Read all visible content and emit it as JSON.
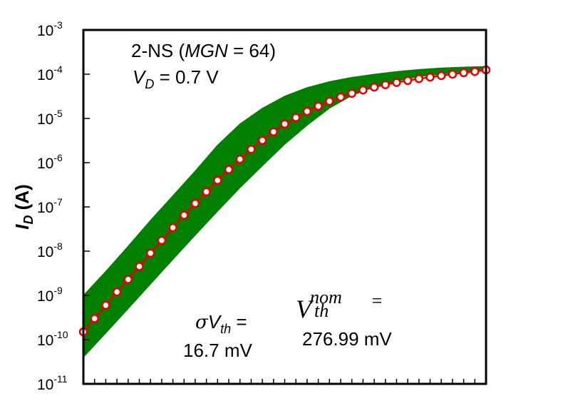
{
  "chart_data": {
    "type": "line",
    "title": "",
    "xlabel": "",
    "ylabel": "I_D (A)",
    "ylabel_parts": {
      "main": "I",
      "sub": "D",
      "unit": "(A)"
    },
    "yscale": "log",
    "ylim": [
      1e-11,
      0.001
    ],
    "xlim": [
      0,
      36
    ],
    "x_tick_count": 36,
    "y_ticks": [
      {
        "base": "10",
        "exp": "-3"
      },
      {
        "base": "10",
        "exp": "-4"
      },
      {
        "base": "10",
        "exp": "-5"
      },
      {
        "base": "10",
        "exp": "-6"
      },
      {
        "base": "10",
        "exp": "-7"
      },
      {
        "base": "10",
        "exp": "-8"
      },
      {
        "base": "10",
        "exp": "-9"
      },
      {
        "base": "10",
        "exp": "-10"
      },
      {
        "base": "10",
        "exp": "-11"
      }
    ],
    "grid": false,
    "band": {
      "description": "Monte Carlo spread (green)",
      "color": "#008000",
      "x": [
        0,
        2,
        4,
        6,
        8,
        10,
        12,
        14,
        16,
        18,
        20,
        22,
        24,
        26,
        28,
        30,
        32,
        34,
        36
      ],
      "upper": [
        1e-09,
        3.5e-09,
        1.3e-08,
        5e-08,
        1.8e-07,
        6.5e-07,
        2.5e-06,
        7.5e-06,
        1.7e-05,
        3.2e-05,
        5e-05,
        6.8e-05,
        8.5e-05,
        0.0001,
        0.000115,
        0.000128,
        0.000138,
        0.000145,
        0.00015
      ],
      "lower": [
        4e-11,
        1.4e-10,
        5e-10,
        1.8e-09,
        6.5e-09,
        2.3e-08,
        8e-08,
        2.7e-07,
        8.5e-07,
        2.6e-06,
        7e-06,
        1.7e-05,
        3.3e-05,
        5.2e-05,
        7e-05,
        8.8e-05,
        0.0001,
        0.000115,
        0.000125
      ]
    },
    "series": [
      {
        "color": "#e60000",
        "marker": "open-circle",
        "x": [
          0,
          1,
          2,
          3,
          4,
          5,
          6,
          7,
          8,
          9,
          10,
          11,
          12,
          13,
          14,
          15,
          16,
          17,
          18,
          19,
          20,
          21,
          22,
          23,
          24,
          25,
          26,
          27,
          28,
          29,
          30,
          31,
          32,
          33,
          34,
          35,
          36
        ],
        "values": [
          1.5e-10,
          3e-10,
          6e-10,
          1.2e-09,
          2.3e-09,
          4.5e-09,
          9e-09,
          1.75e-08,
          3.4e-08,
          6.5e-08,
          1.2e-07,
          2.2e-07,
          4e-07,
          7e-07,
          1.2e-06,
          2e-06,
          3.2e-06,
          5e-06,
          7.5e-06,
          1.05e-05,
          1.45e-05,
          1.9e-05,
          2.45e-05,
          3.05e-05,
          3.7e-05,
          4.4e-05,
          5.1e-05,
          5.8e-05,
          6.5e-05,
          7.2e-05,
          7.9e-05,
          8.6e-05,
          9.3e-05,
          0.0001,
          0.000108,
          0.000115,
          0.000125
        ]
      }
    ]
  },
  "annotations": {
    "device": {
      "prefix": "2-NS (",
      "name": "MGN",
      "suffix": " = 64)"
    },
    "vd": {
      "var": "V",
      "sub": "D",
      "rest": " = 0.7 V"
    },
    "sigma": {
      "sym": "σ",
      "var": "V",
      "sub": "th",
      "rest": " =",
      "value": "16.7 mV"
    },
    "vnom": {
      "var": "V",
      "sup": "nom",
      "sub": "th",
      "rest": " =",
      "value": "276.99 mV"
    }
  },
  "colors": {
    "band": "#008000",
    "line": "#e60000",
    "marker_fill": "#ffffff",
    "axis": "#000000"
  }
}
